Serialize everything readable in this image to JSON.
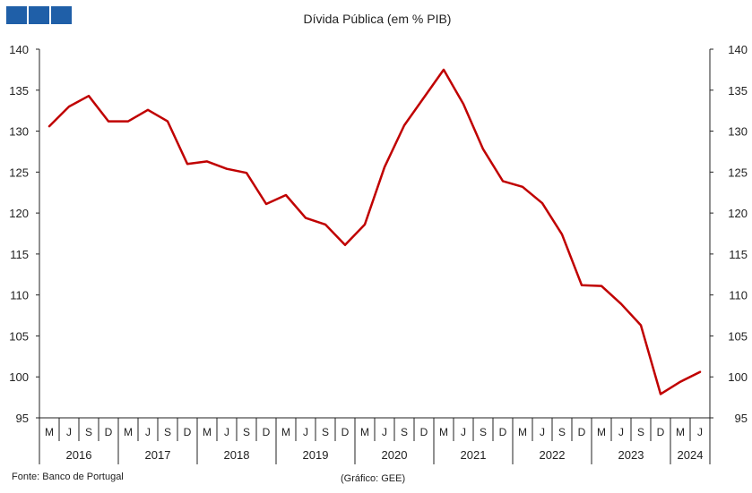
{
  "logo": {
    "color": "#1f5fa8",
    "blocks": 3
  },
  "footer": {
    "source": "Fonte: Banco de Portugal",
    "credit": "(Gráfico: GEE)"
  },
  "chart_data": {
    "type": "line",
    "title": "Dívida Pública (em % PIB)",
    "xlabel": "",
    "ylabel": "",
    "ylim": [
      95,
      140
    ],
    "yticks": [
      95,
      100,
      105,
      110,
      115,
      120,
      125,
      130,
      135,
      140
    ],
    "y_axis_right_mirror": true,
    "grid": false,
    "legend": "none",
    "line_color": "#c00000",
    "month_labels": [
      "M",
      "J",
      "S",
      "D",
      "M",
      "J",
      "S",
      "D",
      "M",
      "J",
      "S",
      "D",
      "M",
      "J",
      "S",
      "D",
      "M",
      "J",
      "S",
      "D",
      "M",
      "J",
      "S",
      "D",
      "M",
      "J",
      "S",
      "D",
      "M",
      "J",
      "S",
      "D",
      "M",
      "J"
    ],
    "years": [
      {
        "label": "2016",
        "count": 4
      },
      {
        "label": "2017",
        "count": 4
      },
      {
        "label": "2018",
        "count": 4
      },
      {
        "label": "2019",
        "count": 4
      },
      {
        "label": "2020",
        "count": 4
      },
      {
        "label": "2021",
        "count": 4
      },
      {
        "label": "2022",
        "count": 4
      },
      {
        "label": "2023",
        "count": 4
      },
      {
        "label": "2024",
        "count": 2
      }
    ],
    "series": [
      {
        "values": [
          130.6,
          133.0,
          134.3,
          131.2,
          131.2,
          132.6,
          131.2,
          126.0,
          126.3,
          125.4,
          124.9,
          121.1,
          122.2,
          119.4,
          118.6,
          116.1,
          118.6,
          125.6,
          130.7,
          134.1,
          137.5,
          133.3,
          127.8,
          123.9,
          123.2,
          121.2,
          117.4,
          111.2,
          111.1,
          108.9,
          106.3,
          97.9,
          99.4,
          100.6
        ]
      }
    ]
  }
}
